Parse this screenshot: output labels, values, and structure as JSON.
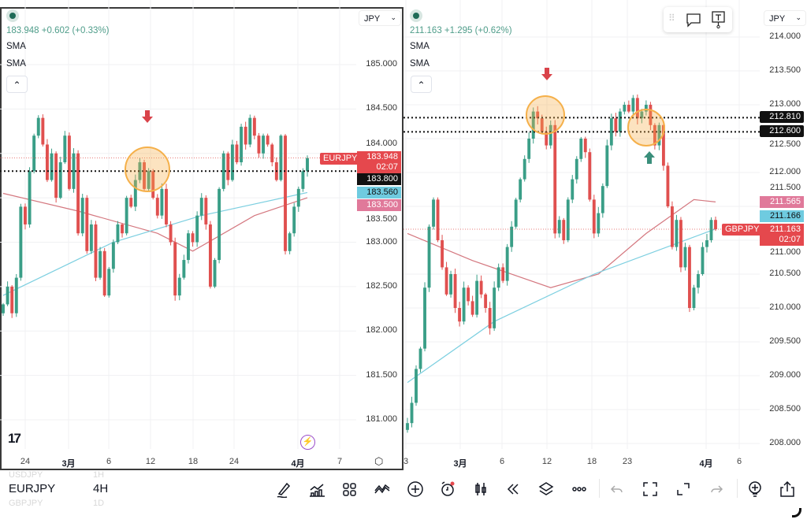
{
  "left": {
    "quote": "183.948 +0.602 (+0.33%)",
    "sma1": "SMA",
    "sma2": "SMA",
    "currency": "JPY",
    "price_ticks": [
      "185.000",
      "184.500",
      "184.000",
      "183.500",
      "183.000",
      "182.500",
      "182.000",
      "181.500",
      "181.000"
    ],
    "x_ticks": [
      {
        "t": "24",
        "b": false
      },
      {
        "t": "3月",
        "b": true
      },
      {
        "t": "6",
        "b": false
      },
      {
        "t": "12",
        "b": false
      },
      {
        "t": "18",
        "b": false
      },
      {
        "t": "24",
        "b": false
      },
      {
        "t": "4月",
        "b": true
      },
      {
        "t": "7",
        "b": false
      }
    ],
    "symbol_tag": "EURJPY",
    "last_price": "183.948",
    "countdown": "02:07",
    "line_level": "183.800",
    "sma_blue": "183.560",
    "sma_red": "183.500"
  },
  "right": {
    "quote": "211.163 +1.295 (+0.62%)",
    "sma1": "SMA",
    "sma2": "SMA",
    "currency": "JPY",
    "price_ticks": [
      "214.000",
      "213.500",
      "213.000",
      "212.500",
      "212.000",
      "211.500",
      "211.000",
      "210.500",
      "210.000",
      "209.500",
      "209.000",
      "208.500",
      "208.000"
    ],
    "x_ticks": [
      {
        "t": "3",
        "b": false
      },
      {
        "t": "3月",
        "b": true
      },
      {
        "t": "6",
        "b": false
      },
      {
        "t": "12",
        "b": false
      },
      {
        "t": "18",
        "b": false
      },
      {
        "t": "23",
        "b": false
      },
      {
        "t": "4月",
        "b": true
      },
      {
        "t": "6",
        "b": false
      }
    ],
    "symbol_tag": "GBPJPY",
    "last_price": "211.163",
    "countdown": "02:07",
    "line_level_1": "212.810",
    "line_level_2": "212.600",
    "sma_red": "211.565",
    "sma_blue": "211.166"
  },
  "picker": {
    "symbols": [
      "USDJPY",
      "EURJPY",
      "GBPJPY"
    ],
    "intervals": [
      "1H",
      "4H",
      "1D"
    ]
  },
  "toolbar": [
    "pen-icon",
    "indicators-icon",
    "layout-grid-icon",
    "patterns-icon",
    "add-icon",
    "alert-icon",
    "candles-icon",
    "replay-icon",
    "layers-icon",
    "more-icon",
    "undo-icon",
    "fullscreen-icon",
    "expand-icon",
    "redo-icon",
    "idea-icon",
    "share-icon"
  ],
  "colors": {
    "up": "#3a9e87",
    "down": "#e0504f",
    "sma_red": "#d4777f",
    "sma_blue": "#7ccfe0",
    "highlight": "#f5b04a"
  },
  "chart_data": [
    {
      "type": "candlestick",
      "symbol": "EURJPY",
      "ylim": [
        180.8,
        185.2
      ],
      "closes": [
        182.3,
        182.5,
        182.2,
        182.6,
        183.4,
        183.2,
        183.8,
        184.2,
        184.4,
        184.1,
        183.7,
        184.0,
        183.5,
        183.9,
        184.2,
        183.6,
        184.0,
        183.1,
        183.5,
        182.9,
        183.2,
        182.6,
        182.9,
        182.4,
        182.7,
        183.0,
        183.2,
        183.1,
        183.5,
        183.4,
        183.7,
        183.9,
        183.6,
        183.8,
        183.5,
        183.3,
        183.6,
        183.2,
        183.0,
        182.4,
        182.6,
        182.8,
        183.1,
        183.0,
        183.3,
        183.5,
        183.2,
        182.5,
        182.8,
        183.6,
        184.0,
        183.7,
        184.1,
        183.9,
        184.3,
        184.1,
        184.4,
        184.2,
        184.0,
        184.2,
        184.1,
        183.9,
        183.7,
        184.2,
        182.9,
        183.1,
        183.4,
        183.6,
        183.8,
        183.948
      ],
      "sma_red": [
        [
          0,
          183.55
        ],
        [
          17,
          183.35
        ],
        [
          35,
          183.1
        ],
        [
          43,
          182.9
        ],
        [
          57,
          183.3
        ],
        [
          69,
          183.5
        ]
      ],
      "sma_blue": [
        [
          0,
          182.4
        ],
        [
          25,
          183.0
        ],
        [
          45,
          183.3
        ],
        [
          69,
          183.56
        ]
      ],
      "levels": [
        183.8
      ]
    },
    {
      "type": "candlestick",
      "symbol": "GBPJPY",
      "ylim": [
        207.8,
        214.2
      ],
      "closes": [
        208.3,
        208.6,
        209.1,
        209.4,
        210.3,
        211.2,
        211.6,
        211.0,
        210.6,
        210.2,
        210.5,
        210.0,
        209.8,
        210.3,
        210.1,
        209.9,
        210.4,
        210.2,
        210.0,
        209.7,
        210.3,
        210.6,
        210.4,
        210.9,
        211.2,
        211.6,
        211.9,
        212.2,
        212.5,
        212.9,
        212.8,
        212.6,
        212.4,
        212.7,
        211.1,
        211.3,
        211.0,
        211.6,
        211.9,
        212.2,
        212.5,
        212.3,
        211.6,
        211.1,
        211.4,
        211.8,
        212.4,
        212.8,
        212.6,
        212.9,
        213.0,
        212.9,
        213.1,
        212.8,
        212.9,
        213.0,
        212.7,
        212.4,
        212.7,
        212.1,
        211.5,
        210.9,
        211.3,
        210.6,
        210.9,
        210.0,
        210.3,
        210.5,
        210.9,
        211.0,
        211.3,
        211.163
      ],
      "sma_red": [
        [
          0,
          211.1
        ],
        [
          15,
          210.7
        ],
        [
          33,
          210.3
        ],
        [
          44,
          210.5
        ],
        [
          55,
          211.1
        ],
        [
          66,
          211.6
        ],
        [
          71,
          211.565
        ]
      ],
      "sma_blue": [
        [
          0,
          208.9
        ],
        [
          20,
          209.8
        ],
        [
          43,
          210.5
        ],
        [
          71,
          211.166
        ]
      ],
      "levels": [
        212.81,
        212.6
      ]
    }
  ]
}
